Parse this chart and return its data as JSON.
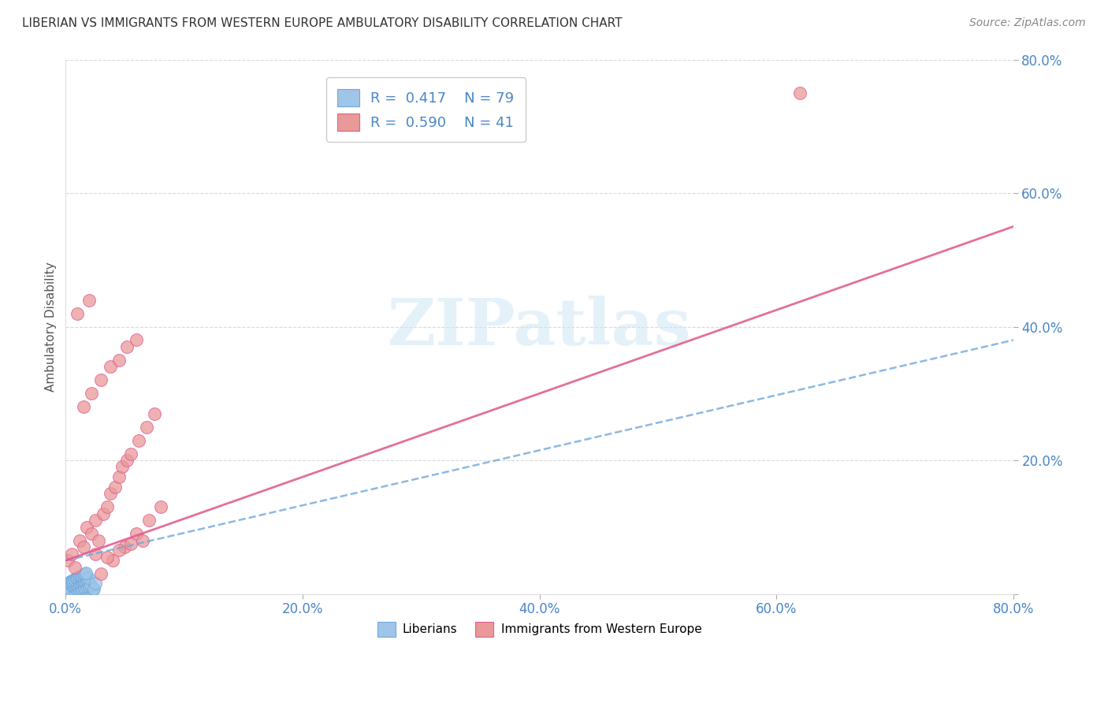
{
  "title": "LIBERIAN VS IMMIGRANTS FROM WESTERN EUROPE AMBULATORY DISABILITY CORRELATION CHART",
  "source": "Source: ZipAtlas.com",
  "ylabel": "Ambulatory Disability",
  "xmin": 0.0,
  "xmax": 0.8,
  "ymin": 0.0,
  "ymax": 0.8,
  "legend_R1": "0.417",
  "legend_N1": "79",
  "legend_R2": "0.590",
  "legend_N2": "41",
  "blue_color": "#9fc5e8",
  "pink_color": "#ea9999",
  "blue_edge_color": "#6fa8dc",
  "pink_edge_color": "#e06090",
  "blue_line_color": "#6fa8dc",
  "pink_line_color": "#e06090",
  "watermark_color": "#cde4f5",
  "grid_color": "#d0d0d0",
  "tick_color": "#4a86c8",
  "blue_x": [
    0.002,
    0.003,
    0.001,
    0.004,
    0.002,
    0.005,
    0.003,
    0.001,
    0.006,
    0.004,
    0.007,
    0.002,
    0.005,
    0.003,
    0.008,
    0.006,
    0.004,
    0.009,
    0.007,
    0.005,
    0.01,
    0.003,
    0.008,
    0.006,
    0.011,
    0.004,
    0.009,
    0.007,
    0.012,
    0.005,
    0.01,
    0.008,
    0.013,
    0.006,
    0.011,
    0.009,
    0.014,
    0.007,
    0.012,
    0.01,
    0.015,
    0.008,
    0.013,
    0.011,
    0.016,
    0.009,
    0.014,
    0.012,
    0.017,
    0.01,
    0.015,
    0.013,
    0.018,
    0.011,
    0.016,
    0.014,
    0.019,
    0.012,
    0.017,
    0.015,
    0.02,
    0.013,
    0.018,
    0.016,
    0.021,
    0.014,
    0.019,
    0.017,
    0.022,
    0.015,
    0.02,
    0.018,
    0.023,
    0.016,
    0.021,
    0.019,
    0.024,
    0.017,
    0.025
  ],
  "blue_y": [
    0.005,
    0.008,
    0.003,
    0.006,
    0.01,
    0.004,
    0.012,
    0.007,
    0.002,
    0.009,
    0.005,
    0.013,
    0.008,
    0.011,
    0.003,
    0.015,
    0.006,
    0.004,
    0.01,
    0.014,
    0.007,
    0.016,
    0.005,
    0.012,
    0.003,
    0.018,
    0.008,
    0.011,
    0.004,
    0.019,
    0.006,
    0.013,
    0.002,
    0.02,
    0.009,
    0.014,
    0.005,
    0.022,
    0.007,
    0.015,
    0.003,
    0.021,
    0.01,
    0.016,
    0.004,
    0.023,
    0.008,
    0.017,
    0.005,
    0.024,
    0.011,
    0.018,
    0.003,
    0.025,
    0.009,
    0.019,
    0.006,
    0.026,
    0.012,
    0.02,
    0.004,
    0.027,
    0.01,
    0.021,
    0.007,
    0.028,
    0.013,
    0.022,
    0.005,
    0.029,
    0.011,
    0.023,
    0.006,
    0.03,
    0.014,
    0.024,
    0.008,
    0.031,
    0.016
  ],
  "pink_x": [
    0.002,
    0.005,
    0.008,
    0.012,
    0.015,
    0.018,
    0.022,
    0.025,
    0.028,
    0.032,
    0.035,
    0.038,
    0.042,
    0.045,
    0.048,
    0.052,
    0.055,
    0.062,
    0.068,
    0.075,
    0.015,
    0.022,
    0.03,
    0.038,
    0.045,
    0.052,
    0.06,
    0.01,
    0.02,
    0.03,
    0.04,
    0.05,
    0.06,
    0.07,
    0.08,
    0.025,
    0.035,
    0.045,
    0.055,
    0.065,
    0.62
  ],
  "pink_y": [
    0.05,
    0.06,
    0.04,
    0.08,
    0.07,
    0.1,
    0.09,
    0.11,
    0.08,
    0.12,
    0.13,
    0.15,
    0.16,
    0.175,
    0.19,
    0.2,
    0.21,
    0.23,
    0.25,
    0.27,
    0.28,
    0.3,
    0.32,
    0.34,
    0.35,
    0.37,
    0.38,
    0.42,
    0.44,
    0.03,
    0.05,
    0.07,
    0.09,
    0.11,
    0.13,
    0.06,
    0.055,
    0.065,
    0.075,
    0.08,
    0.75
  ],
  "blue_line_x0": 0.0,
  "blue_line_y0": 0.05,
  "blue_line_x1": 0.8,
  "blue_line_y1": 0.38,
  "pink_line_x0": 0.0,
  "pink_line_y0": 0.05,
  "pink_line_x1": 0.8,
  "pink_line_y1": 0.55
}
